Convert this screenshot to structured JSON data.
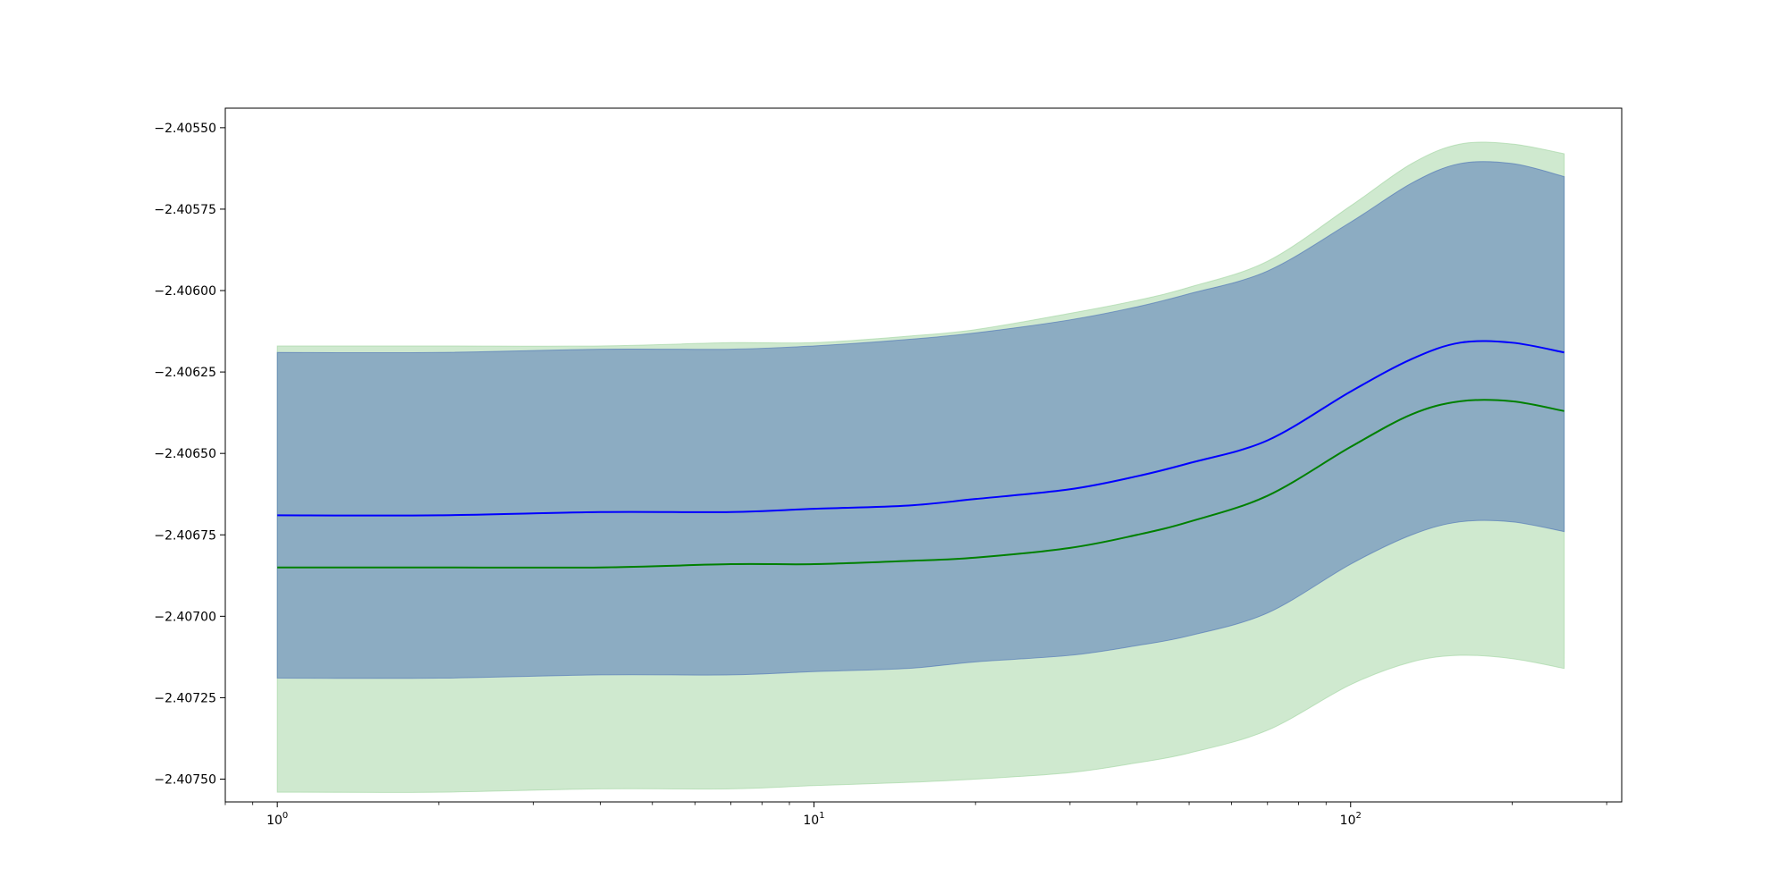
{
  "chart_data": {
    "type": "line",
    "title": "",
    "xlabel": "",
    "ylabel": "",
    "x_scale": "log",
    "xlim": [
      0.8,
      320
    ],
    "ylim": [
      -2.40757,
      -2.40544
    ],
    "grid": false,
    "legend": "none",
    "x_ticks": [
      {
        "value": 1,
        "base": "10",
        "exp": "0"
      },
      {
        "value": 10,
        "base": "10",
        "exp": "1"
      },
      {
        "value": 100,
        "base": "10",
        "exp": "2"
      }
    ],
    "y_ticks": [
      {
        "value": -2.4055,
        "label": "−2.40550"
      },
      {
        "value": -2.40575,
        "label": "−2.40575"
      },
      {
        "value": -2.406,
        "label": "−2.40600"
      },
      {
        "value": -2.40625,
        "label": "−2.40625"
      },
      {
        "value": -2.4065,
        "label": "−2.40650"
      },
      {
        "value": -2.40675,
        "label": "−2.40675"
      },
      {
        "value": -2.407,
        "label": "−2.40700"
      },
      {
        "value": -2.40725,
        "label": "−2.40725"
      },
      {
        "value": -2.4075,
        "label": "−2.40750"
      }
    ],
    "x": [
      1,
      2,
      4,
      7,
      10,
      15,
      20,
      30,
      40,
      50,
      70,
      100,
      130,
      160,
      200,
      250
    ],
    "series": [
      {
        "color": "#0000ff",
        "values": [
          -2.40669,
          -2.40669,
          -2.40668,
          -2.40668,
          -2.40667,
          -2.40666,
          -2.40664,
          -2.40661,
          -2.40657,
          -2.40653,
          -2.40646,
          -2.40631,
          -2.40621,
          -2.40616,
          -2.40616,
          -2.40619
        ],
        "band_upper": [
          -2.40619,
          -2.40619,
          -2.40618,
          -2.40618,
          -2.40617,
          -2.40615,
          -2.40613,
          -2.40609,
          -2.40605,
          -2.40601,
          -2.40594,
          -2.40579,
          -2.40567,
          -2.40561,
          -2.40561,
          -2.40565
        ],
        "band_lower": [
          -2.40719,
          -2.40719,
          -2.40718,
          -2.40718,
          -2.40717,
          -2.40716,
          -2.40714,
          -2.40712,
          -2.40709,
          -2.40706,
          -2.40699,
          -2.40684,
          -2.40675,
          -2.40671,
          -2.40671,
          -2.40674
        ],
        "band_color": "#4a6fb5",
        "band_opacity": 0.5
      },
      {
        "color": "#008000",
        "values": [
          -2.40685,
          -2.40685,
          -2.40685,
          -2.40684,
          -2.40684,
          -2.40683,
          -2.40682,
          -2.40679,
          -2.40675,
          -2.40671,
          -2.40663,
          -2.40648,
          -2.40638,
          -2.40634,
          -2.40634,
          -2.40637
        ],
        "band_upper": [
          -2.40617,
          -2.40617,
          -2.40617,
          -2.40616,
          -2.40616,
          -2.40614,
          -2.40612,
          -2.40607,
          -2.40603,
          -2.40599,
          -2.40591,
          -2.40574,
          -2.40561,
          -2.40555,
          -2.40555,
          -2.40558
        ],
        "band_lower": [
          -2.40754,
          -2.40754,
          -2.40753,
          -2.40753,
          -2.40752,
          -2.40751,
          -2.4075,
          -2.40748,
          -2.40745,
          -2.40742,
          -2.40735,
          -2.40721,
          -2.40714,
          -2.40712,
          -2.40713,
          -2.40716
        ],
        "band_color": "#9fd39f",
        "band_opacity": 0.5
      }
    ]
  }
}
